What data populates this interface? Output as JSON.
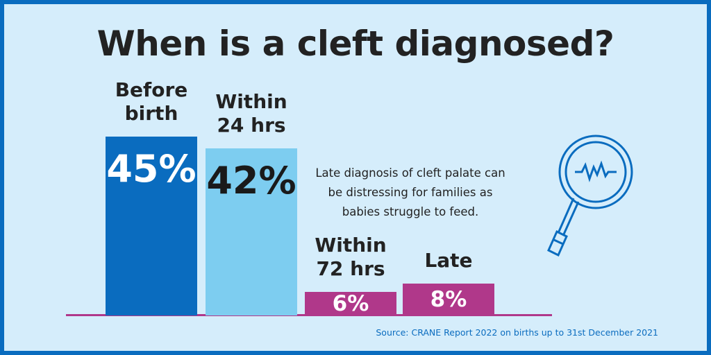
{
  "chart_data": {
    "type": "bar",
    "title": "When is a cleft diagnosed?",
    "categories": [
      "Before birth",
      "Within 24 hrs",
      "Within 72 hrs",
      "Late"
    ],
    "values": [
      45,
      42,
      6,
      8
    ],
    "value_labels": [
      "45%",
      "42%",
      "6%",
      "8%"
    ],
    "colors": [
      "#0a6cbf",
      "#7dcdf0",
      "#b0388a",
      "#b0388a"
    ],
    "annotation": "Late diagnosis of cleft palate can be distressing for families as babies struggle to feed.",
    "source": "Source: CRANE Report 2022 on births up to 31st December 2021"
  }
}
